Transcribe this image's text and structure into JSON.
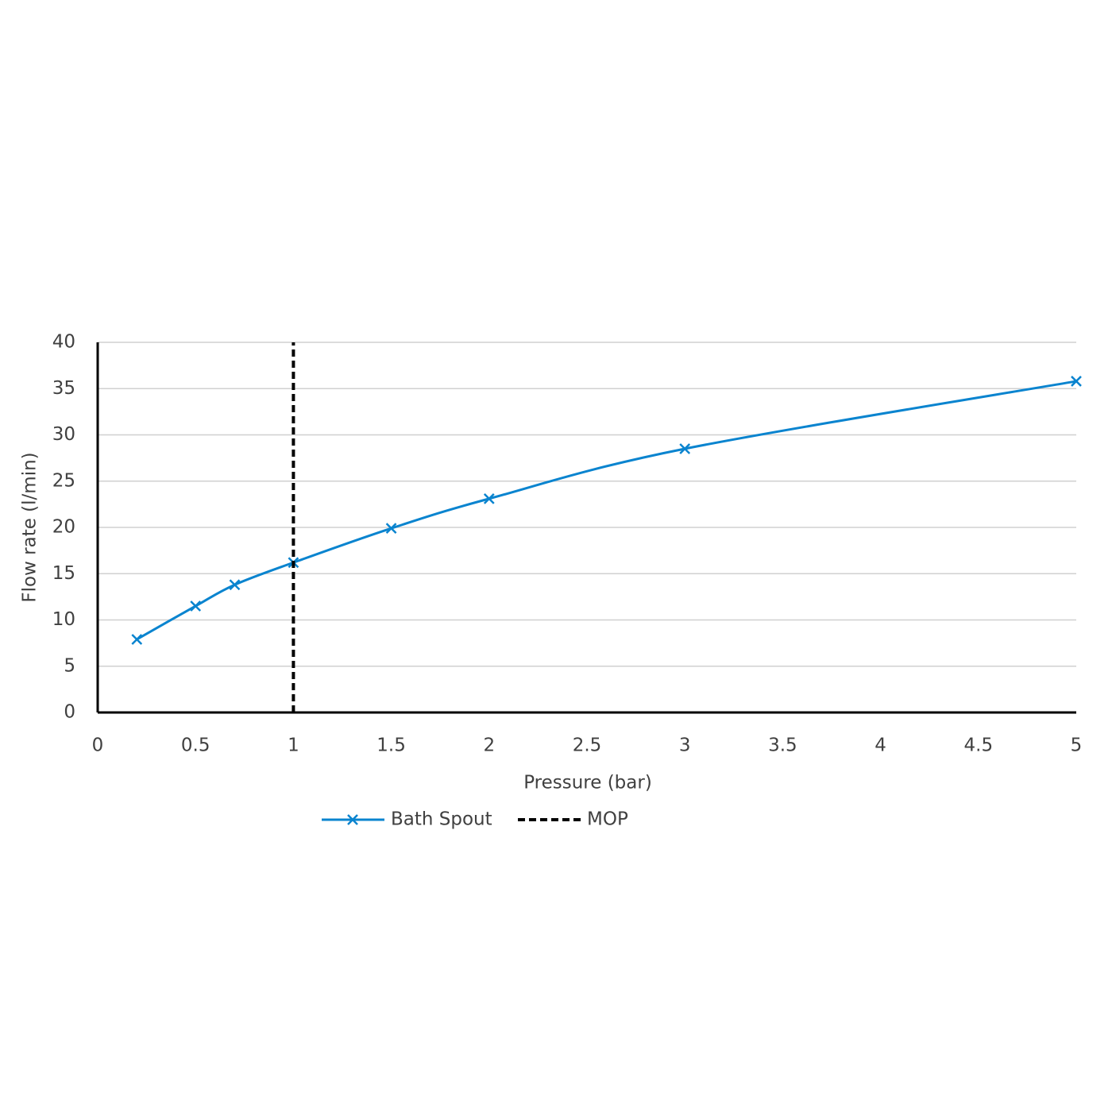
{
  "chart_data": {
    "type": "line",
    "x_label": "Pressure (bar)",
    "y_label": "Flow rate (l/min)",
    "series": [
      {
        "name": "Bath Spout",
        "color": "#0a84cf",
        "marker": "x",
        "smooth": true,
        "x": [
          0.2,
          0.5,
          0.7,
          1,
          1.5,
          2,
          3,
          5
        ],
        "values": [
          7.9,
          11.5,
          13.8,
          16.2,
          19.9,
          23.1,
          28.5,
          35.8
        ]
      },
      {
        "name": "MOP",
        "color": "#000000",
        "dash": true,
        "x": [
          1,
          1
        ],
        "values": [
          0,
          40
        ]
      }
    ],
    "xlim": [
      0,
      5
    ],
    "xticks": [
      0,
      0.5,
      1,
      1.5,
      2,
      2.5,
      3,
      3.5,
      4,
      4.5,
      5
    ],
    "ylim": [
      0,
      40
    ],
    "yticks": [
      0,
      5,
      10,
      15,
      20,
      25,
      30,
      35,
      40
    ],
    "grid": true,
    "legend": "bottom"
  }
}
